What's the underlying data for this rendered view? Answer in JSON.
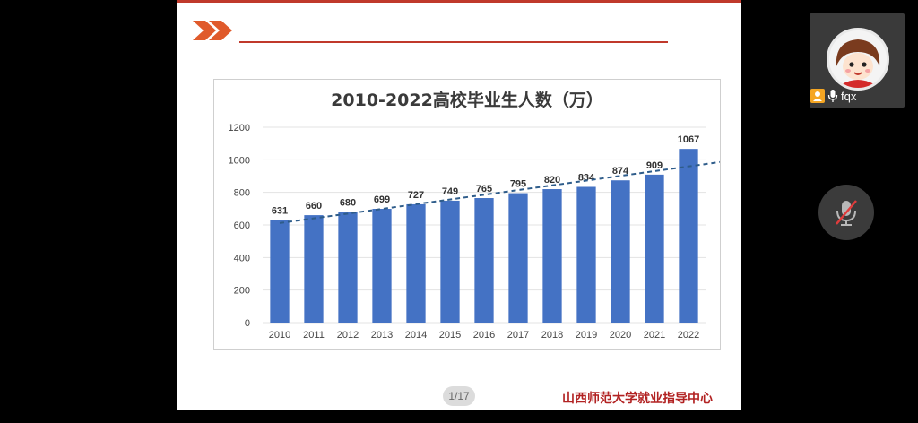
{
  "slide": {
    "page_indicator": "1/17",
    "footer_org": "山西师范大学就业指导中心"
  },
  "chart_data": {
    "type": "bar",
    "title": "2010-2022高校毕业生人数（万）",
    "categories": [
      "2010",
      "2011",
      "2012",
      "2013",
      "2014",
      "2015",
      "2016",
      "2017",
      "2018",
      "2019",
      "2020",
      "2021",
      "2022"
    ],
    "values": [
      631,
      660,
      680,
      699,
      727,
      749,
      765,
      795,
      820,
      834,
      874,
      909,
      1067
    ],
    "y_ticks": [
      0,
      200,
      400,
      600,
      800,
      1000,
      1200
    ],
    "ylim": [
      0,
      1200
    ],
    "trendline": {
      "style": "dashed",
      "color": "#2e5c8a"
    },
    "bar_color": "#4472c4",
    "grid": true,
    "xlabel": "",
    "ylabel": ""
  },
  "participant": {
    "name": "fqx",
    "host_badge_color": "#f5a623"
  },
  "controls": {
    "mic_state": "muted",
    "mic_icon": "mic-off-icon"
  },
  "colors": {
    "accent": "#c0392b",
    "footer_text": "#b22222"
  }
}
